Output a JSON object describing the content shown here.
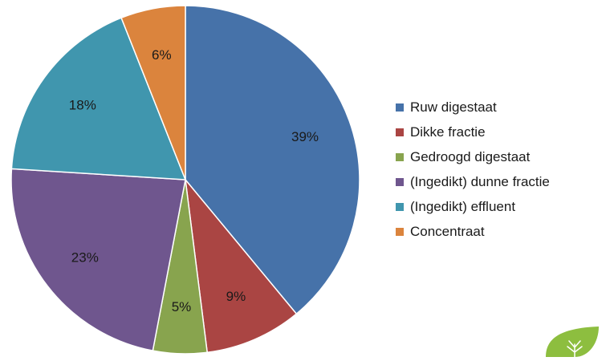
{
  "chart_data": {
    "type": "pie",
    "title": "",
    "start_angle_deg": 0,
    "direction": "clockwise",
    "legend_position": "right",
    "slices": [
      {
        "label": "Ruw digestaat",
        "value": 39,
        "display": "39%",
        "color": "#4672A9"
      },
      {
        "label": "Dikke fractie",
        "value": 9,
        "display": "9%",
        "color": "#AA4543"
      },
      {
        "label": "Gedroogd digestaat",
        "value": 5,
        "display": "5%",
        "color": "#88A44E"
      },
      {
        "label": "(Ingedikt) dunne fractie",
        "value": 23,
        "display": "23%",
        "color": "#6F568E"
      },
      {
        "label": "(Ingedikt) effluent",
        "value": 18,
        "display": "18%",
        "color": "#4096AE"
      },
      {
        "label": "Concentraat",
        "value": 6,
        "display": "6%",
        "color": "#DB843D"
      }
    ]
  },
  "logo": {
    "icon": "leaf-logo-icon",
    "color": "#8DBE3F"
  }
}
